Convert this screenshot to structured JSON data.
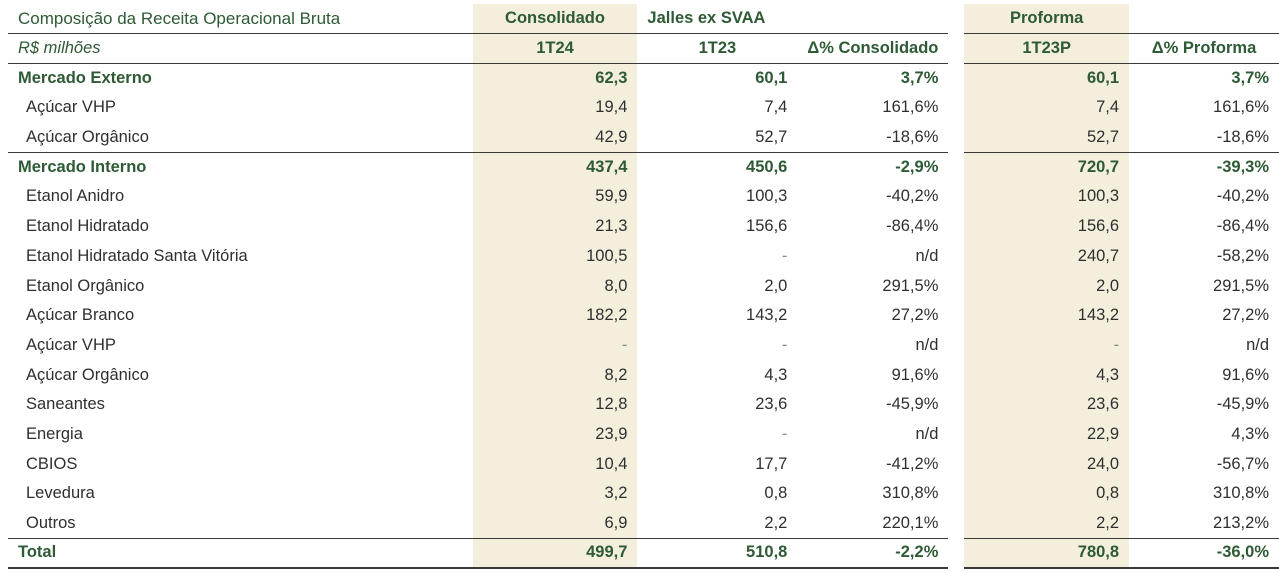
{
  "table": {
    "title": "Composição da Receita Operacional Bruta",
    "unit": "R$ milhões",
    "group_headers": {
      "consolidado": "Consolidado",
      "jalles_ex_svaa": "Jalles ex SVAA",
      "proforma": "Proforma"
    },
    "column_headers": {
      "c_1t24": "1T24",
      "c_1t23": "1T23",
      "delta_consolidado": "Δ% Consolidado",
      "c_1t23p": "1T23P",
      "delta_proforma": "Δ% Proforma"
    },
    "sections": [
      {
        "name": "Mercado Externo",
        "values": [
          "62,3",
          "60,1",
          "3,7%",
          "60,1",
          "3,7%"
        ],
        "rows": [
          {
            "label": "Açúcar VHP",
            "values": [
              "19,4",
              "7,4",
              "161,6%",
              "7,4",
              "161,6%"
            ]
          },
          {
            "label": "Açúcar Orgânico",
            "values": [
              "42,9",
              "52,7",
              "-18,6%",
              "52,7",
              "-18,6%"
            ]
          }
        ]
      },
      {
        "name": "Mercado Interno",
        "values": [
          "437,4",
          "450,6",
          "-2,9%",
          "720,7",
          "-39,3%"
        ],
        "rows": [
          {
            "label": "Etanol Anidro",
            "values": [
              "59,9",
              "100,3",
              "-40,2%",
              "100,3",
              "-40,2%"
            ]
          },
          {
            "label": "Etanol Hidratado",
            "values": [
              "21,3",
              "156,6",
              "-86,4%",
              "156,6",
              "-86,4%"
            ]
          },
          {
            "label": "Etanol Hidratado Santa Vitória",
            "values": [
              "100,5",
              "-",
              "n/d",
              "240,7",
              "-58,2%"
            ]
          },
          {
            "label": "Etanol Orgânico",
            "values": [
              "8,0",
              "2,0",
              "291,5%",
              "2,0",
              "291,5%"
            ]
          },
          {
            "label": "Açúcar Branco",
            "values": [
              "182,2",
              "143,2",
              "27,2%",
              "143,2",
              "27,2%"
            ]
          },
          {
            "label": "Açúcar VHP",
            "values": [
              "-",
              "-",
              "n/d",
              "-",
              "n/d"
            ]
          },
          {
            "label": "Açúcar Orgânico",
            "values": [
              "8,2",
              "4,3",
              "91,6%",
              "4,3",
              "91,6%"
            ]
          },
          {
            "label": "Saneantes",
            "values": [
              "12,8",
              "23,6",
              "-45,9%",
              "23,6",
              "-45,9%"
            ]
          },
          {
            "label": "Energia",
            "values": [
              "23,9",
              "-",
              "n/d",
              "22,9",
              "4,3%"
            ]
          },
          {
            "label": "CBIOS",
            "values": [
              "10,4",
              "17,7",
              "-41,2%",
              "24,0",
              "-56,7%"
            ]
          },
          {
            "label": "Levedura",
            "values": [
              "3,2",
              "0,8",
              "310,8%",
              "0,8",
              "310,8%"
            ]
          },
          {
            "label": "Outros",
            "values": [
              "6,9",
              "2,2",
              "220,1%",
              "2,2",
              "213,2%"
            ]
          }
        ]
      }
    ],
    "total": {
      "label": "Total",
      "values": [
        "499,7",
        "510,8",
        "-2,2%",
        "780,8",
        "-36,0%"
      ]
    }
  }
}
